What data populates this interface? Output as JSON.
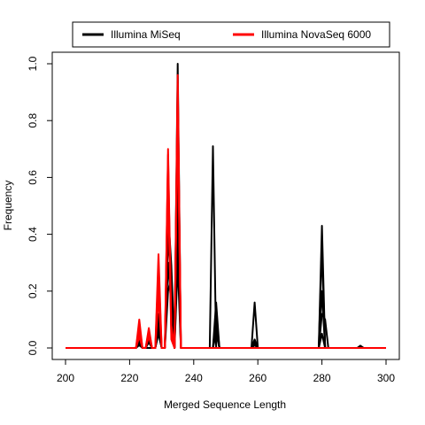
{
  "chart_data": {
    "type": "line",
    "xlabel": "Merged Sequence Length",
    "ylabel": "Frequency",
    "xlim": [
      200,
      300
    ],
    "ylim": [
      0,
      1.0
    ],
    "x_ticks": [
      200,
      220,
      240,
      260,
      280,
      300
    ],
    "y_ticks": [
      0.0,
      0.2,
      0.4,
      0.6,
      0.8,
      1.0
    ],
    "x_tick_labels": [
      "200",
      "220",
      "240",
      "260",
      "280",
      "300"
    ],
    "y_tick_labels": [
      "0.0",
      "0.2",
      "0.4",
      "0.6",
      "0.8",
      "1.0"
    ],
    "legend": {
      "position": "top",
      "entries": [
        {
          "label": "Illumina MiSeq",
          "color": "#000000"
        },
        {
          "label": "Illumina NovaSeq 6000",
          "color": "#ff0000"
        }
      ]
    },
    "series": [
      {
        "name": "Illumina MiSeq",
        "color": "#000000",
        "samples": [
          {
            "peaks": [
              [
                223,
                0.03
              ],
              [
                226,
                0.04
              ],
              [
                229,
                0.06
              ],
              [
                232,
                0.56
              ],
              [
                233,
                0.1
              ],
              [
                235,
                1.0
              ],
              [
                246,
                0.71
              ],
              [
                280,
                0.43
              ]
            ]
          },
          {
            "peaks": [
              [
                223,
                0.05
              ],
              [
                226,
                0.02
              ],
              [
                229,
                0.12
              ],
              [
                232,
                0.48
              ],
              [
                233,
                0.29
              ],
              [
                235,
                0.65
              ],
              [
                247,
                0.16
              ],
              [
                259,
                0.16
              ],
              [
                280,
                0.35
              ]
            ]
          },
          {
            "peaks": [
              [
                223,
                0.02
              ],
              [
                226,
                0.03
              ],
              [
                229,
                0.1
              ],
              [
                232,
                0.4
              ],
              [
                233,
                0.2
              ],
              [
                235,
                0.5
              ],
              [
                247,
                0.12
              ],
              [
                259,
                0.02
              ],
              [
                280,
                0.2
              ],
              [
                292,
                0.008
              ]
            ]
          },
          {
            "peaks": [
              [
                223,
                0.04
              ],
              [
                226,
                0.05
              ],
              [
                229,
                0.08
              ],
              [
                232,
                0.3
              ],
              [
                233,
                0.15
              ],
              [
                235,
                0.38
              ],
              [
                247,
                0.08
              ],
              [
                259,
                0.03
              ],
              [
                280,
                0.12
              ],
              [
                281,
                0.1
              ]
            ]
          },
          {
            "peaks": [
              [
                223,
                0.01
              ],
              [
                229,
                0.05
              ],
              [
                232,
                0.2
              ],
              [
                233,
                0.25
              ],
              [
                235,
                0.3
              ],
              [
                247,
                0.05
              ],
              [
                259,
                0.01
              ],
              [
                280,
                0.05
              ]
            ]
          }
        ]
      },
      {
        "name": "Illumina NovaSeq 6000",
        "color": "#ff0000",
        "samples": [
          {
            "peaks": [
              [
                223,
                0.1
              ],
              [
                226,
                0.07
              ],
              [
                229,
                0.33
              ],
              [
                232,
                0.7
              ],
              [
                233,
                0.08
              ],
              [
                235,
                0.96
              ]
            ]
          },
          {
            "peaks": [
              [
                223,
                0.06
              ],
              [
                226,
                0.05
              ],
              [
                229,
                0.28
              ],
              [
                232,
                0.68
              ],
              [
                233,
                0.05
              ],
              [
                235,
                0.93
              ]
            ]
          },
          {
            "peaks": [
              [
                223,
                0.04
              ],
              [
                226,
                0.06
              ],
              [
                229,
                0.22
              ],
              [
                232,
                0.6
              ],
              [
                233,
                0.03
              ],
              [
                235,
                0.88
              ]
            ]
          },
          {
            "peaks": [
              [
                223,
                0.08
              ],
              [
                226,
                0.04
              ],
              [
                229,
                0.18
              ],
              [
                232,
                0.55
              ],
              [
                233,
                0.06
              ],
              [
                235,
                0.8
              ]
            ]
          }
        ]
      }
    ]
  }
}
